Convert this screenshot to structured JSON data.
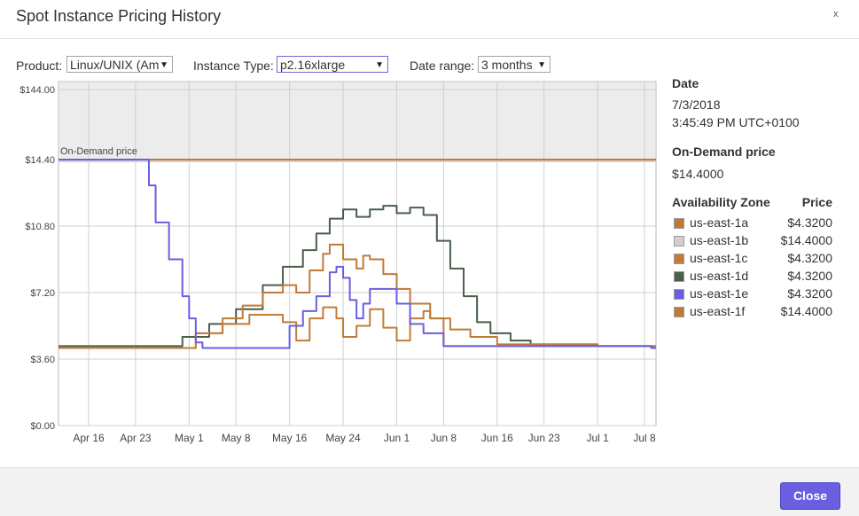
{
  "dialog": {
    "title": "Spot Instance Pricing History",
    "close_x": "x"
  },
  "controls": {
    "product_label": "Product:",
    "product_value": "Linux/UNIX (Am",
    "instance_type_label": "Instance Type:",
    "instance_type_value": "p2.16xlarge",
    "date_range_label": "Date range:",
    "date_range_value": "3 months"
  },
  "details": {
    "date_label": "Date",
    "date_value": "7/3/2018",
    "time_value": "3:45:49 PM UTC+0100",
    "ondemand_label": "On-Demand price",
    "ondemand_value": "$14.4000",
    "az_header": "Availability Zone",
    "price_header": "Price",
    "zones": [
      {
        "name": "us-east-1a",
        "price": "$4.3200",
        "color": "#c07a35"
      },
      {
        "name": "us-east-1b",
        "price": "$14.4000",
        "color": "#d4cfcf"
      },
      {
        "name": "us-east-1c",
        "price": "$4.3200",
        "color": "#c27c38"
      },
      {
        "name": "us-east-1d",
        "price": "$4.3200",
        "color": "#4a5e4c"
      },
      {
        "name": "us-east-1e",
        "price": "$4.3200",
        "color": "#6a5fe0"
      },
      {
        "name": "us-east-1f",
        "price": "$14.4000",
        "color": "#c07a35"
      }
    ]
  },
  "footer": {
    "close_label": "Close"
  },
  "chart_data": {
    "type": "line",
    "x_tick_labels": [
      "Apr 16",
      "Apr 23",
      "May 1",
      "May 8",
      "May 16",
      "May 24",
      "Jun 1",
      "Jun 8",
      "Jun 16",
      "Jun 23",
      "Jul 1",
      "Jul 8"
    ],
    "y_tick_labels": [
      "$0.00",
      "$3.60",
      "$7.20",
      "$10.80",
      "$14.40",
      "$144.00"
    ],
    "ondemand_annotation": "On-Demand price",
    "ondemand_price": 14.4,
    "ondemand_color": "#c07a35",
    "grid": true,
    "series": [
      {
        "name": "us-east-1d",
        "color": "#4a5e4c",
        "points": [
          [
            "Apr 6",
            4.3
          ],
          [
            "Apr 28",
            4.3
          ],
          [
            "Apr 30",
            4.8
          ],
          [
            "May 4",
            5.5
          ],
          [
            "May 8",
            6.3
          ],
          [
            "May 12",
            7.6
          ],
          [
            "May 15",
            8.6
          ],
          [
            "May 18",
            9.5
          ],
          [
            "May 20",
            10.4
          ],
          [
            "May 22",
            11.2
          ],
          [
            "May 24",
            11.7
          ],
          [
            "May 26",
            11.3
          ],
          [
            "May 28",
            11.7
          ],
          [
            "May 30",
            11.9
          ],
          [
            "Jun 1",
            11.5
          ],
          [
            "Jun 3",
            11.8
          ],
          [
            "Jun 5",
            11.4
          ],
          [
            "Jun 7",
            10.0
          ],
          [
            "Jun 9",
            8.5
          ],
          [
            "Jun 11",
            7.0
          ],
          [
            "Jun 13",
            5.6
          ],
          [
            "Jun 15",
            5.0
          ],
          [
            "Jun 18",
            4.6
          ],
          [
            "Jun 21",
            4.4
          ],
          [
            "Jul 1",
            4.3
          ],
          [
            "Jul 9",
            4.3
          ]
        ]
      },
      {
        "name": "us-east-1a",
        "color": "#c07a35",
        "points": [
          [
            "Apr 6",
            4.2
          ],
          [
            "Apr 28",
            4.2
          ],
          [
            "May 2",
            5.0
          ],
          [
            "May 6",
            5.8
          ],
          [
            "May 9",
            6.5
          ],
          [
            "May 12",
            7.2
          ],
          [
            "May 15",
            7.6
          ],
          [
            "May 17",
            7.2
          ],
          [
            "May 19",
            8.4
          ],
          [
            "May 21",
            9.3
          ],
          [
            "May 22",
            9.8
          ],
          [
            "May 24",
            9.0
          ],
          [
            "May 26",
            8.5
          ],
          [
            "May 27",
            9.2
          ],
          [
            "May 28",
            9.0
          ],
          [
            "May 30",
            8.2
          ],
          [
            "Jun 1",
            7.4
          ],
          [
            "Jun 3",
            6.6
          ],
          [
            "Jun 6",
            5.8
          ],
          [
            "Jun 9",
            5.2
          ],
          [
            "Jun 12",
            4.8
          ],
          [
            "Jun 16",
            4.4
          ],
          [
            "Jul 1",
            4.3
          ],
          [
            "Jul 9",
            4.3
          ]
        ]
      },
      {
        "name": "us-east-1c",
        "color": "#c27c38",
        "points": [
          [
            "Apr 6",
            4.2
          ],
          [
            "Apr 28",
            4.2
          ],
          [
            "May 2",
            5.0
          ],
          [
            "May 6",
            5.5
          ],
          [
            "May 10",
            6.0
          ],
          [
            "May 13",
            6.0
          ],
          [
            "May 15",
            5.6
          ],
          [
            "May 17",
            4.6
          ],
          [
            "May 19",
            5.8
          ],
          [
            "May 21",
            6.4
          ],
          [
            "May 23",
            5.8
          ],
          [
            "May 24",
            4.8
          ],
          [
            "May 26",
            5.4
          ],
          [
            "May 28",
            6.3
          ],
          [
            "May 30",
            5.3
          ],
          [
            "Jun 1",
            4.6
          ],
          [
            "Jun 3",
            5.8
          ],
          [
            "Jun 5",
            6.2
          ],
          [
            "Jun 6",
            5.8
          ],
          [
            "Jun 8",
            4.3
          ],
          [
            "Jun 12",
            4.3
          ],
          [
            "Jul 9",
            4.3
          ]
        ]
      },
      {
        "name": "us-east-1e",
        "color": "#6a5fe0",
        "points": [
          [
            "Apr 6",
            14.4
          ],
          [
            "Apr 24",
            14.4
          ],
          [
            "Apr 25",
            13.0
          ],
          [
            "Apr 26",
            11.0
          ],
          [
            "Apr 28",
            9.0
          ],
          [
            "Apr 30",
            7.0
          ],
          [
            "May 1",
            5.8
          ],
          [
            "May 2",
            4.5
          ],
          [
            "May 3",
            4.2
          ],
          [
            "May 14",
            4.2
          ],
          [
            "May 16",
            5.4
          ],
          [
            "May 18",
            6.2
          ],
          [
            "May 20",
            7.0
          ],
          [
            "May 22",
            8.3
          ],
          [
            "May 23",
            8.6
          ],
          [
            "May 24",
            8.0
          ],
          [
            "May 25",
            6.8
          ],
          [
            "May 26",
            5.8
          ],
          [
            "May 27",
            6.6
          ],
          [
            "May 28",
            7.4
          ],
          [
            "May 31",
            7.4
          ],
          [
            "Jun 1",
            6.6
          ],
          [
            "Jun 3",
            5.5
          ],
          [
            "Jun 5",
            5.0
          ],
          [
            "Jun 8",
            4.3
          ],
          [
            "Jul 9",
            4.2
          ]
        ]
      }
    ]
  }
}
